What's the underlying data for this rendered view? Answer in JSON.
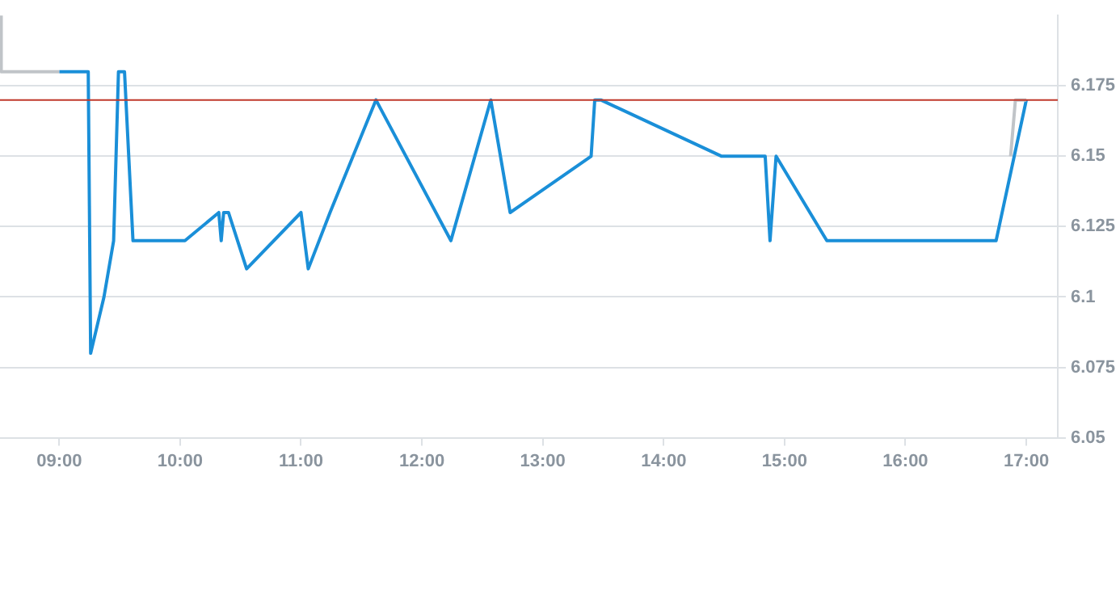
{
  "chart_data": {
    "type": "line",
    "marker": "none",
    "grid": "y",
    "legend": false,
    "xlim": [
      8.51,
      17.26
    ],
    "xticks": [
      {
        "value": 9,
        "label": "09:00"
      },
      {
        "value": 10,
        "label": "10:00"
      },
      {
        "value": 11,
        "label": "11:00"
      },
      {
        "value": 12,
        "label": "12:00"
      },
      {
        "value": 13,
        "label": "13:00"
      },
      {
        "value": 14,
        "label": "14:00"
      },
      {
        "value": 15,
        "label": "15:00"
      },
      {
        "value": 16,
        "label": "16:00"
      },
      {
        "value": 17,
        "label": "17:00"
      }
    ],
    "ylim": [
      6.05,
      6.2
    ],
    "yticks": [
      6.05,
      6.075,
      6.1,
      6.125,
      6.15,
      6.175
    ],
    "ref_lines": [
      {
        "axis": "y",
        "value": 6.17,
        "color": "#c0392b"
      }
    ],
    "series": [
      {
        "color": "#c0c4c8",
        "x": [
          8.51,
          8.52,
          9.0
        ],
        "values": [
          6.2,
          6.18,
          6.18
        ]
      },
      {
        "color": "#c0c4c8",
        "x": [
          16.87,
          16.91,
          17.0
        ],
        "values": [
          6.15,
          6.17,
          6.17
        ]
      },
      {
        "color": "#1a8fd8",
        "x": [
          9.0,
          9.24,
          9.26,
          9.37,
          9.45,
          9.49,
          9.54,
          9.61,
          10.04,
          10.32,
          10.34,
          10.36,
          10.4,
          10.55,
          11.0,
          11.06,
          11.24,
          11.62,
          12.24,
          12.57,
          12.73,
          13.4,
          13.43,
          13.48,
          14.48,
          14.84,
          14.88,
          14.93,
          15.35,
          16.75,
          17.0
        ],
        "values": [
          6.18,
          6.18,
          6.08,
          6.1,
          6.12,
          6.18,
          6.18,
          6.12,
          6.12,
          6.13,
          6.12,
          6.13,
          6.13,
          6.11,
          6.13,
          6.11,
          6.13,
          6.17,
          6.12,
          6.17,
          6.13,
          6.15,
          6.17,
          6.17,
          6.15,
          6.15,
          6.12,
          6.15,
          6.12,
          6.12,
          6.17
        ]
      }
    ]
  }
}
